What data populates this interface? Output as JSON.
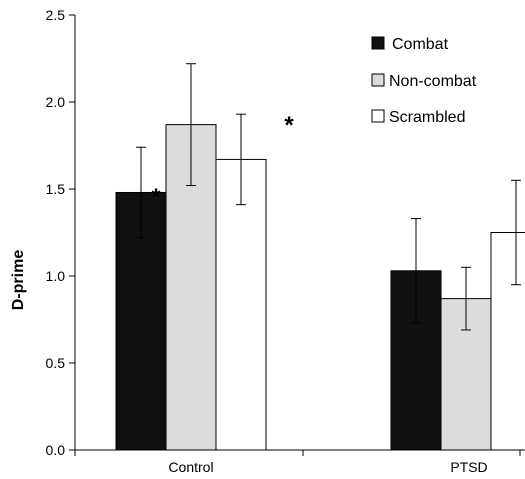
{
  "chart_data": {
    "type": "bar",
    "title": "",
    "xlabel": "",
    "ylabel": "D-prime",
    "ylim": [
      0,
      2.5
    ],
    "yticks": [
      "0.0",
      "0.5",
      "1.0",
      "1.5",
      "2.0",
      "2.5"
    ],
    "categories": [
      "Control",
      "PTSD"
    ],
    "series": [
      {
        "name": "Combat",
        "values": [
          1.48,
          1.03
        ],
        "errors": [
          0.26,
          0.3
        ],
        "color": "#111111"
      },
      {
        "name": "Non-combat",
        "values": [
          1.87,
          0.87
        ],
        "errors": [
          0.35,
          0.18
        ],
        "color": "#dcdcdc"
      },
      {
        "name": "Scrambled",
        "values": [
          1.67,
          1.25
        ],
        "errors": [
          0.26,
          0.3
        ],
        "color": "#ffffff"
      }
    ],
    "annotations": [
      "*",
      "*"
    ],
    "legend": "top-right",
    "grid": false
  }
}
